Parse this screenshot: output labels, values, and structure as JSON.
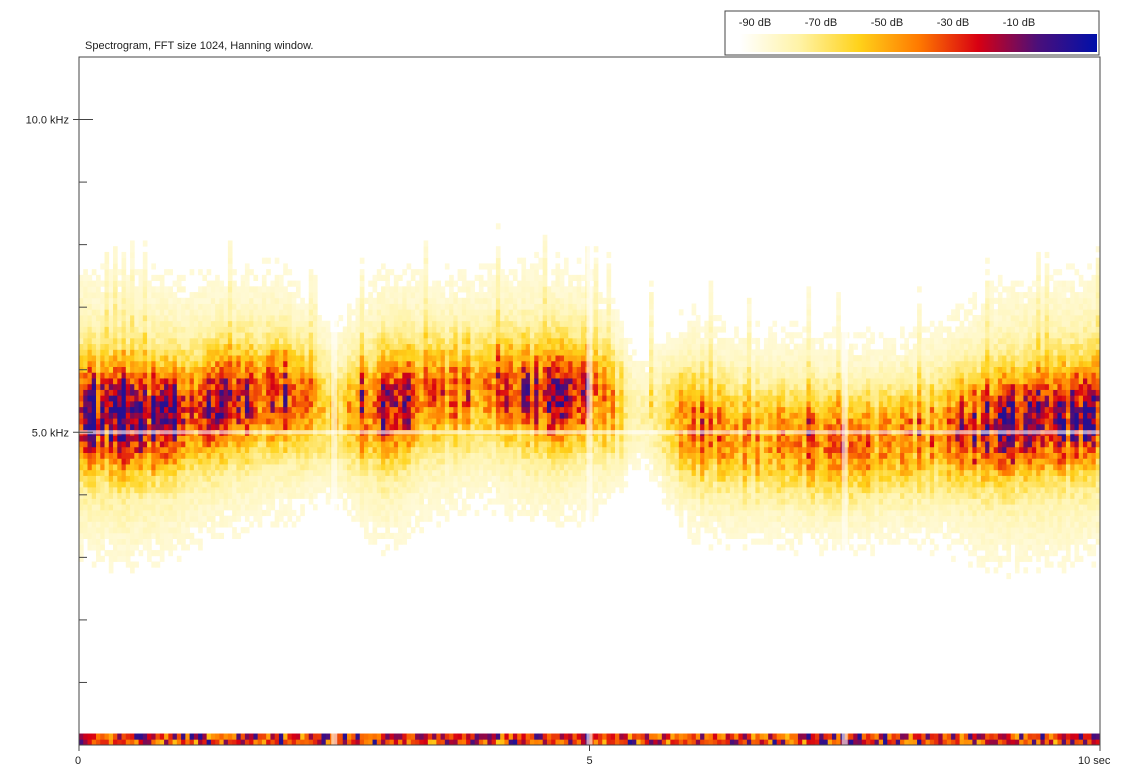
{
  "chart_data": {
    "type": "heatmap",
    "title": "Spectrogram, FFT size 1024, Hanning window.",
    "x_axis": {
      "range": [
        0,
        10
      ],
      "unit": "sec",
      "ticks": [
        {
          "value": 0,
          "label": "0"
        },
        {
          "value": 5,
          "label": "5"
        },
        {
          "value": 10,
          "label": "10 sec"
        }
      ],
      "gridlines": [
        2.5,
        5,
        7.5
      ]
    },
    "y_axis": {
      "range": [
        0,
        11
      ],
      "unit": "kHz",
      "labeled_ticks": [
        {
          "value": 5,
          "label": "5.0 kHz"
        },
        {
          "value": 10,
          "label": "10.0 kHz"
        }
      ],
      "minor_ticks": [
        1,
        2,
        3,
        4,
        6,
        7,
        8,
        9,
        11
      ],
      "gridlines": [
        5,
        10
      ]
    },
    "color_scale": {
      "labels": [
        "-90 dB",
        "-70 dB",
        "-50 dB",
        "-30 dB",
        "-10 dB"
      ],
      "colors": [
        "#ffffff",
        "#fff3a6",
        "#ffd21a",
        "#ff7a00",
        "#d80012",
        "#4b0f7a",
        "#0010aa"
      ]
    },
    "energy_profile": {
      "description_units": "center frequency (kHz) and relative intensity over time (sec)",
      "time_points": [
        0.0,
        0.5,
        1.0,
        1.5,
        2.0,
        2.5,
        3.0,
        3.5,
        4.0,
        4.5,
        5.0,
        5.5,
        6.0,
        6.5,
        7.0,
        7.5,
        8.0,
        8.5,
        9.0,
        9.5,
        10.0
      ],
      "center_khz": [
        5.3,
        5.2,
        5.3,
        5.5,
        5.6,
        5.3,
        5.4,
        5.6,
        5.7,
        5.6,
        5.6,
        5.3,
        5.1,
        4.9,
        4.9,
        4.8,
        4.9,
        5.0,
        5.1,
        5.2,
        5.3
      ],
      "intensity": [
        0.85,
        0.9,
        0.75,
        0.7,
        0.65,
        0.35,
        0.8,
        0.6,
        0.55,
        0.7,
        0.65,
        0.15,
        0.55,
        0.5,
        0.5,
        0.5,
        0.45,
        0.55,
        0.8,
        0.85,
        0.8
      ]
    }
  }
}
